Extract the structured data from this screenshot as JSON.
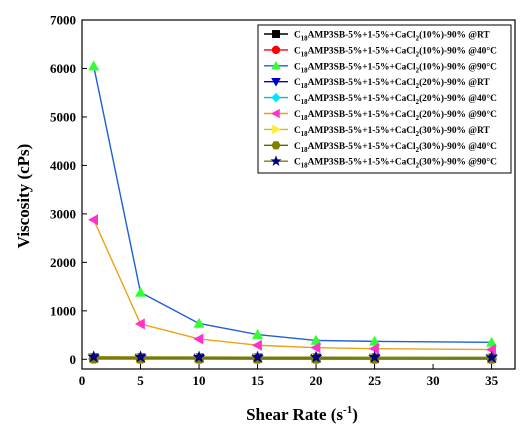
{
  "chart_data": {
    "type": "line",
    "xlabel": "Shear Rate (s",
    "xlabel_sup": "-1",
    "xlabel_end": ")",
    "ylabel": "Viscosity (cPs)",
    "xlim": [
      0,
      37
    ],
    "ylim": [
      -200,
      7000
    ],
    "xticks": [
      0,
      5,
      10,
      15,
      20,
      25,
      30,
      35
    ],
    "yticks": [
      0,
      1000,
      2000,
      3000,
      4000,
      5000,
      6000,
      7000
    ],
    "x": [
      1,
      5,
      10,
      15,
      20,
      25,
      35
    ],
    "legend_position": "top-right",
    "grid": false,
    "series": [
      {
        "name": "C18AMP3SB-5%+1-5%+CaCl2(10%)-90% @RT",
        "parts": [
          "C",
          "18",
          "AMP3SB-5%+1-5%+CaCl",
          "2",
          "(10%)-90% @RT"
        ],
        "marker": "square",
        "marker_color": "#000000",
        "line_color": "#000000",
        "values": [
          28,
          27,
          26,
          25,
          24,
          23,
          22
        ]
      },
      {
        "name": "C18AMP3SB-5%+1-5%+CaCl2(10%)-90% @40°C",
        "parts": [
          "C",
          "18",
          "AMP3SB-5%+1-5%+CaCl",
          "2",
          "(10%)-90% @40°C"
        ],
        "marker": "circle",
        "marker_color": "#ff0000",
        "line_color": "#ff0000",
        "values": [
          22,
          21,
          20,
          19,
          18,
          17,
          16
        ]
      },
      {
        "name": "C18AMP3SB-5%+1-5%+CaCl2(10%)-90% @90°C",
        "parts": [
          "C",
          "18",
          "AMP3SB-5%+1-5%+CaCl",
          "2",
          "(10%)-90% @90°C"
        ],
        "marker": "triangle-up",
        "marker_color": "#33ff33",
        "line_color": "#1f5fd6",
        "values": [
          6050,
          1380,
          740,
          510,
          390,
          370,
          350
        ]
      },
      {
        "name": "C18AMP3SB-5%+1-5%+CaCl2(20%)-90% @RT",
        "parts": [
          "C",
          "18",
          "AMP3SB-5%+1-5%+CaCl",
          "2",
          "(20%)-90% @RT"
        ],
        "marker": "triangle-down",
        "marker_color": "#0000cc",
        "line_color": "#0000cc",
        "values": [
          30,
          28,
          27,
          26,
          25,
          24,
          23
        ]
      },
      {
        "name": "C18AMP3SB-5%+1-5%+CaCl2(20%)-90% @40°C",
        "parts": [
          "C",
          "18",
          "AMP3SB-5%+1-5%+CaCl",
          "2",
          "(20%)-90% @40°C"
        ],
        "marker": "diamond",
        "marker_color": "#00e5ff",
        "line_color": "#00bcd4",
        "values": [
          20,
          19,
          18,
          17,
          16,
          15,
          14
        ]
      },
      {
        "name": "C18AMP3SB-5%+1-5%+CaCl2(20%)-90% @90°C",
        "parts": [
          "C",
          "18",
          "AMP3SB-5%+1-5%+CaCl",
          "2",
          "(20%)-90% @90°C"
        ],
        "marker": "triangle-left",
        "marker_color": "#ff33cc",
        "line_color": "#e8a317",
        "values": [
          2880,
          730,
          420,
          290,
          240,
          220,
          200
        ]
      },
      {
        "name": "C18AMP3SB-5%+1-5%+CaCl2(30%)-90% @RT",
        "parts": [
          "C",
          "18",
          "AMP3SB-5%+1-5%+CaCl",
          "2",
          "(30%)-90% @RT"
        ],
        "marker": "triangle-right",
        "marker_color": "#ffee33",
        "line_color": "#d4c000",
        "values": [
          12,
          11,
          10,
          10,
          9,
          9,
          8
        ]
      },
      {
        "name": "C18AMP3SB-5%+1-5%+CaCl2(30%)-90% @40°C",
        "parts": [
          "C",
          "18",
          "AMP3SB-5%+1-5%+CaCl",
          "2",
          "(30%)-90% @40°C"
        ],
        "marker": "hexagon",
        "marker_color": "#808000",
        "line_color": "#606000",
        "values": [
          8,
          7,
          7,
          6,
          6,
          5,
          5
        ]
      },
      {
        "name": "C18AMP3SB-5%+1-5%+CaCl2(30%)-90% @90°C",
        "parts": [
          "C",
          "18",
          "AMP3SB-5%+1-5%+CaCl",
          "2",
          "(30%)-90% @90°C"
        ],
        "marker": "star",
        "marker_color": "#000080",
        "line_color": "#808000",
        "values": [
          50,
          48,
          45,
          44,
          43,
          42,
          40
        ]
      }
    ]
  }
}
